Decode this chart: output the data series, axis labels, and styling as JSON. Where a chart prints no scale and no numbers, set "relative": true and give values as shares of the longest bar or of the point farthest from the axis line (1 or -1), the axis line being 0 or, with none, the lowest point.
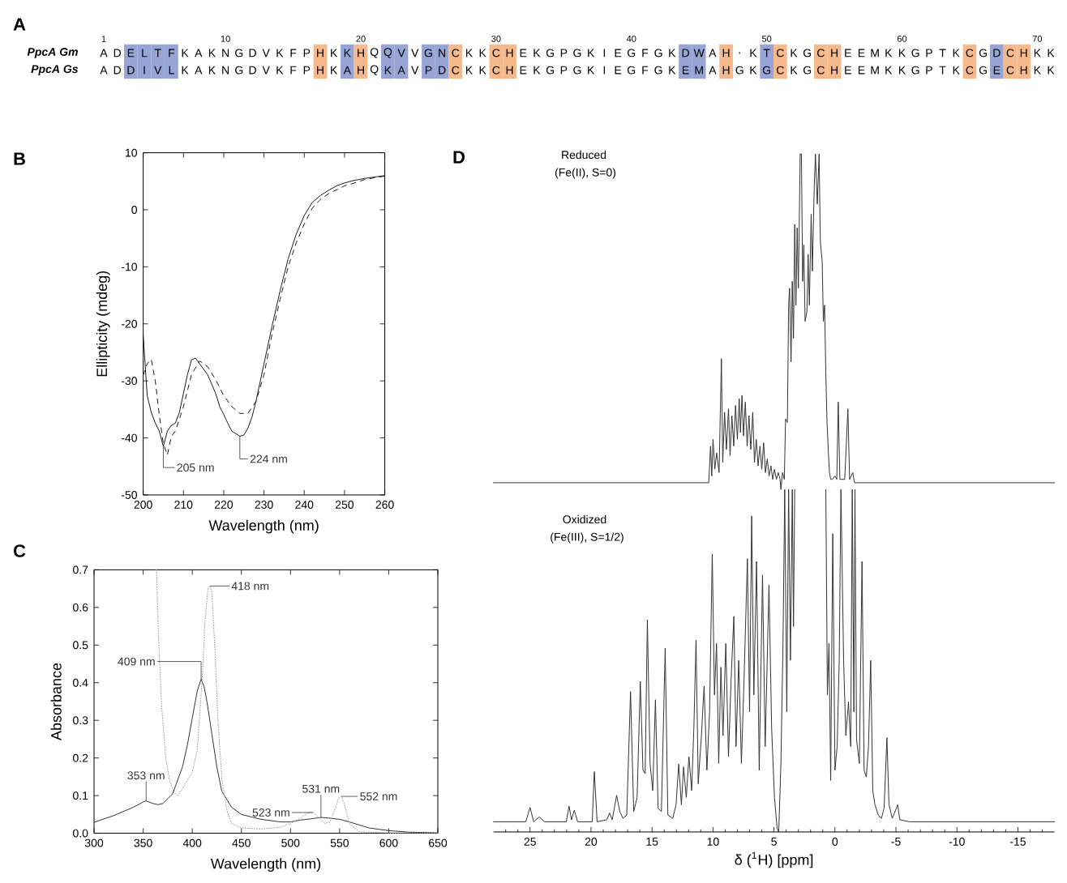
{
  "chart_data": [
    {
      "type": "other",
      "title": "A",
      "categories": [
        "1",
        null,
        null,
        null,
        null,
        null,
        null,
        null,
        null,
        "10",
        null,
        null,
        null,
        null,
        null,
        null,
        null,
        null,
        null,
        "20",
        null,
        null,
        null,
        null,
        null,
        null,
        null,
        null,
        null,
        "30",
        null,
        null,
        null,
        null,
        null,
        null,
        null,
        null,
        null,
        "40",
        null,
        null,
        null,
        null,
        null,
        null,
        null,
        null,
        null,
        "50",
        null,
        null,
        null,
        null,
        null,
        null,
        null,
        null,
        null,
        "60",
        null,
        null,
        null,
        null,
        null,
        null,
        null,
        null,
        null,
        "70",
        null
      ],
      "y_categories": [
        "PpcA Gm",
        "PpcA Gs"
      ],
      "cell_labels": [
        [
          "A",
          "D",
          "E",
          "L",
          "T",
          "F",
          "K",
          "A",
          "K",
          "N",
          "G",
          "D",
          "V",
          "K",
          "F",
          "P",
          "H",
          "K",
          "K",
          "H",
          "Q",
          "Q",
          "V",
          "V",
          "G",
          "N",
          "C",
          "K",
          "K",
          "C",
          "H",
          "E",
          "K",
          "G",
          "P",
          "G",
          "K",
          "I",
          "E",
          "G",
          "F",
          "G",
          "K",
          "D",
          "W",
          "A",
          "H",
          ".",
          "K",
          "T",
          "C",
          "K",
          "G",
          "C",
          "H",
          "E",
          "E",
          "M",
          "K",
          "K",
          "G",
          "P",
          "T",
          "K",
          "C",
          "G",
          "D",
          "C",
          "H",
          "K",
          "K"
        ],
        [
          "A",
          "D",
          "D",
          "I",
          "V",
          "L",
          "K",
          "A",
          "K",
          "N",
          "G",
          "D",
          "V",
          "K",
          "F",
          "P",
          "H",
          "K",
          "A",
          "H",
          "Q",
          "K",
          "A",
          "V",
          "P",
          "D",
          "C",
          "K",
          "K",
          "C",
          "H",
          "E",
          "K",
          "G",
          "P",
          "G",
          "K",
          "I",
          "E",
          "G",
          "F",
          "G",
          "K",
          "E",
          "M",
          "A",
          "H",
          "G",
          "K",
          "G",
          "C",
          "K",
          "G",
          "C",
          "H",
          "E",
          "E",
          "M",
          "K",
          "K",
          "G",
          "P",
          "T",
          "K",
          "C",
          "G",
          "E",
          "C",
          "H",
          "K",
          "K"
        ]
      ],
      "colors": [
        [
          null,
          null,
          "#96a5d6",
          "#96a5d6",
          "#96a5d6",
          "#96a5d6",
          null,
          null,
          null,
          null,
          null,
          null,
          null,
          null,
          null,
          null,
          "#f5b98b",
          null,
          "#96a5d6",
          "#f5b98b",
          null,
          "#96a5d6",
          "#96a5d6",
          null,
          "#96a5d6",
          "#96a5d6",
          "#f5b98b",
          null,
          null,
          "#f5b98b",
          "#f5b98b",
          null,
          null,
          null,
          null,
          null,
          null,
          null,
          null,
          null,
          null,
          null,
          null,
          "#96a5d6",
          "#96a5d6",
          null,
          "#f5b98b",
          null,
          null,
          "#96a5d6",
          "#f5b98b",
          null,
          null,
          "#f5b98b",
          "#f5b98b",
          null,
          null,
          null,
          null,
          null,
          null,
          null,
          null,
          null,
          "#f5b98b",
          null,
          "#96a5d6",
          "#f5b98b",
          "#f5b98b",
          null,
          null
        ],
        [
          null,
          null,
          "#96a5d6",
          "#96a5d6",
          "#96a5d6",
          "#96a5d6",
          null,
          null,
          null,
          null,
          null,
          null,
          null,
          null,
          null,
          null,
          "#f5b98b",
          null,
          "#96a5d6",
          "#f5b98b",
          null,
          "#96a5d6",
          "#96a5d6",
          null,
          "#96a5d6",
          "#96a5d6",
          "#f5b98b",
          null,
          null,
          "#f5b98b",
          "#f5b98b",
          null,
          null,
          null,
          null,
          null,
          null,
          null,
          null,
          null,
          null,
          null,
          null,
          "#96a5d6",
          "#96a5d6",
          null,
          "#f5b98b",
          null,
          null,
          "#96a5d6",
          "#f5b98b",
          null,
          null,
          "#f5b98b",
          "#f5b98b",
          null,
          null,
          null,
          null,
          null,
          null,
          null,
          null,
          null,
          "#f5b98b",
          null,
          "#96a5d6",
          "#f5b98b",
          "#f5b98b",
          null,
          null
        ]
      ]
    },
    {
      "type": "line",
      "title": "B",
      "xlabel": "Wavelength (nm)",
      "ylabel": "Ellipticity (mdeg)",
      "xlim": [
        200,
        260
      ],
      "ylim": [
        -50,
        10
      ],
      "xticks": [
        200,
        210,
        220,
        230,
        240,
        250,
        260
      ],
      "yticks": [
        -50,
        -40,
        -30,
        -20,
        -10,
        0,
        10
      ],
      "series": [
        {
          "color": "#1a1a1a",
          "line_style": "solid",
          "x": [
            200,
            201,
            202,
            203,
            204,
            205,
            206,
            207,
            208,
            209,
            210,
            211,
            212,
            213,
            214,
            216,
            218,
            219,
            220,
            221,
            222,
            224,
            225,
            226,
            227,
            228,
            230,
            232,
            234,
            236,
            238,
            240,
            242,
            244,
            246,
            248,
            250,
            252,
            255,
            258,
            260
          ],
          "values": [
            -22,
            -32.6,
            -35.5,
            -37.4,
            -38.8,
            -41.5,
            -38.8,
            -37.8,
            -37.4,
            -35.5,
            -32.2,
            -28.9,
            -26.3,
            -26,
            -27,
            -28.9,
            -32.2,
            -34.5,
            -35.9,
            -37.4,
            -38.8,
            -39.7,
            -39.5,
            -38.3,
            -36.4,
            -33.6,
            -27,
            -20.4,
            -14.2,
            -8.6,
            -4.3,
            -1.0,
            1.3,
            2.5,
            3.4,
            4.2,
            4.7,
            5.1,
            5.5,
            5.8,
            6.0
          ]
        },
        {
          "color": "#1a1a1a",
          "line_style": "dashed",
          "x": [
            200,
            201,
            202,
            203,
            204,
            205,
            206,
            207,
            208,
            210,
            212,
            214,
            216,
            218,
            220,
            222,
            224,
            226,
            228,
            230,
            232,
            234,
            236,
            238,
            240,
            242,
            244,
            246,
            248,
            250,
            252,
            255,
            258,
            260
          ],
          "values": [
            -29,
            -27,
            -26.2,
            -30,
            -36,
            -41,
            -43,
            -39.7,
            -38.8,
            -34.5,
            -28.9,
            -26.5,
            -27.5,
            -29.8,
            -32.6,
            -34.5,
            -35.7,
            -35.7,
            -33.6,
            -28.9,
            -21.8,
            -15.7,
            -10,
            -5.8,
            -2.5,
            0.3,
            1.8,
            2.8,
            3.5,
            4.2,
            4.6,
            5.3,
            5.7,
            5.9
          ]
        }
      ],
      "annotations": [
        {
          "text": "205 nm",
          "x": 205,
          "y": -41.5
        },
        {
          "text": "224 nm",
          "x": 224,
          "y": -39.7
        }
      ]
    },
    {
      "type": "line",
      "title": "C",
      "xlabel": "Wavelength (nm)",
      "ylabel": "Absorbance",
      "xlim": [
        300,
        650
      ],
      "ylim": [
        0,
        0.7
      ],
      "xticks": [
        300,
        350,
        400,
        450,
        500,
        550,
        600,
        650
      ],
      "yticks": [
        {
          "value": 0,
          "label": "0.0"
        },
        0.1,
        0.2,
        0.3,
        0.4,
        0.5,
        0.6,
        0.7
      ],
      "series": [
        {
          "color": "#333333",
          "line_style": "solid",
          "x": [
            300,
            320,
            340,
            350,
            353,
            360,
            365,
            370,
            380,
            390,
            395,
            400,
            405,
            409,
            412,
            415,
            420,
            425,
            430,
            440,
            450,
            470,
            490,
            500,
            510,
            520,
            531,
            540,
            550,
            560,
            580,
            600,
            620,
            650
          ],
          "values": [
            0.029,
            0.047,
            0.069,
            0.083,
            0.086,
            0.079,
            0.076,
            0.079,
            0.105,
            0.176,
            0.234,
            0.306,
            0.377,
            0.409,
            0.39,
            0.349,
            0.263,
            0.176,
            0.112,
            0.069,
            0.05,
            0.037,
            0.03,
            0.03,
            0.035,
            0.038,
            0.042,
            0.04,
            0.037,
            0.03,
            0.014,
            0.007,
            0.003,
            0.001
          ]
        },
        {
          "color": "#a0a0a0",
          "line_style": "dotted",
          "x": [
            363.5,
            366,
            369,
            373,
            377,
            381,
            385,
            390,
            395,
            400,
            405,
            410,
            413,
            416,
            418,
            420,
            423,
            426,
            430,
            435,
            440,
            450,
            470,
            490,
            500,
            510,
            518,
            523,
            528,
            535,
            540,
            545,
            549,
            552,
            555,
            560,
            570,
            600,
            650
          ],
          "values": [
            0.7,
            0.5,
            0.33,
            0.2,
            0.14,
            0.11,
            0.1,
            0.119,
            0.141,
            0.162,
            0.22,
            0.406,
            0.564,
            0.65,
            0.657,
            0.636,
            0.492,
            0.306,
            0.148,
            0.062,
            0.026,
            0.014,
            0.011,
            0.016,
            0.026,
            0.04,
            0.055,
            0.055,
            0.044,
            0.026,
            0.03,
            0.062,
            0.093,
            0.098,
            0.076,
            0.026,
            0.004,
            0.001,
            0.001
          ]
        }
      ],
      "annotations": [
        {
          "text": "418 nm",
          "x": 418,
          "y": 0.657
        },
        {
          "text": "409 nm",
          "x": 409,
          "y": 0.409
        },
        {
          "text": "353 nm",
          "x": 353,
          "y": 0.086
        },
        {
          "text": "523 nm",
          "x": 523,
          "y": 0.055
        },
        {
          "text": "531 nm",
          "x": 531,
          "y": 0.042
        },
        {
          "text": "552 nm",
          "x": 552,
          "y": 0.098
        }
      ]
    },
    {
      "type": "line",
      "title": "D",
      "relative": true,
      "xlim": [
        28,
        -18
      ],
      "xlabel": "δ ($^{1}$H) [ppm]",
      "xticks": [
        {
          "value": 27,
          "label": null
        },
        {
          "value": 26,
          "label": null
        },
        25,
        {
          "value": 24,
          "label": null
        },
        {
          "value": 23,
          "label": null
        },
        {
          "value": 22,
          "label": null
        },
        {
          "value": 21,
          "label": null
        },
        20,
        {
          "value": 19,
          "label": null
        },
        {
          "value": 18,
          "label": null
        },
        {
          "value": 17,
          "label": null
        },
        {
          "value": 16,
          "label": null
        },
        15,
        {
          "value": 14,
          "label": null
        },
        {
          "value": 13,
          "label": null
        },
        {
          "value": 12,
          "label": null
        },
        {
          "value": 11,
          "label": null
        },
        10,
        {
          "value": 9,
          "label": null
        },
        {
          "value": 8,
          "label": null
        },
        {
          "value": 7,
          "label": null
        },
        {
          "value": 6,
          "label": null
        },
        5,
        {
          "value": 4,
          "label": null
        },
        {
          "value": 3,
          "label": null
        },
        {
          "value": 2,
          "label": null
        },
        {
          "value": 1,
          "label": null
        },
        0,
        {
          "value": -1,
          "label": null
        },
        {
          "value": -2,
          "label": null
        },
        {
          "value": -3,
          "label": null
        },
        {
          "value": -4,
          "label": null
        },
        -5,
        {
          "value": -6,
          "label": null
        },
        {
          "value": -7,
          "label": null
        },
        {
          "value": -8,
          "label": null
        },
        {
          "value": -9,
          "label": null
        },
        -10,
        {
          "value": -11,
          "label": null
        },
        {
          "value": -12,
          "label": null
        },
        {
          "value": -13,
          "label": null
        },
        {
          "value": -14,
          "label": null
        },
        -15,
        {
          "value": -16,
          "label": null
        },
        {
          "value": -17,
          "label": null
        }
      ],
      "series": [
        {
          "color": "#333333",
          "x": [
            28,
            10.35,
            10.2,
            10.1,
            10.0,
            9.85,
            9.7,
            9.5,
            9.31,
            9.2,
            9.05,
            8.9,
            8.73,
            8.6,
            8.45,
            8.3,
            8.15,
            8.0,
            7.85,
            7.75,
            7.62,
            7.5,
            7.35,
            7.2,
            7.05,
            6.9,
            6.74,
            6.6,
            6.45,
            6.3,
            6.15,
            6.0,
            5.85,
            5.7,
            5.55,
            5.4,
            5.25,
            5.1,
            4.96,
            4.8,
            4.65,
            4.5,
            4.43,
            4.3,
            4.15,
            4.05,
            3.9,
            3.8,
            3.72,
            3.6,
            3.5,
            3.4,
            3.3,
            3.2,
            3.1,
            3.0,
            2.85,
            2.75,
            2.65,
            2.55,
            2.45,
            2.3,
            2.2,
            2.1,
            1.95,
            1.85,
            1.7,
            1.6,
            1.45,
            1.3,
            1.2,
            1.05,
            0.95,
            0.85,
            0.75,
            0.65,
            0.55,
            0.45,
            0.35,
            0.2,
            0.0,
            -0.15,
            -0.27,
            -0.4,
            -0.8,
            -1.06,
            -1.2,
            -1.46,
            -1.6,
            -18
          ],
          "values": [
            0.515,
            0.515,
            0.569,
            0.525,
            0.579,
            0.535,
            0.559,
            0.53,
            0.698,
            0.545,
            0.619,
            0.564,
            0.624,
            0.555,
            0.614,
            0.569,
            0.629,
            0.579,
            0.639,
            0.589,
            0.644,
            0.584,
            0.634,
            0.569,
            0.614,
            0.564,
            0.619,
            0.545,
            0.579,
            0.54,
            0.569,
            0.535,
            0.574,
            0.53,
            0.55,
            0.525,
            0.54,
            0.52,
            0.535,
            0.52,
            0.53,
            0.52,
            0.505,
            0.53,
            0.52,
            0.609,
            0.604,
            0.777,
            0.802,
            0.693,
            0.812,
            0.728,
            0.896,
            0.777,
            0.891,
            0.802,
            1,
            1,
            0.812,
            0.866,
            0.753,
            0.767,
            0.852,
            0.777,
            0.911,
            0.827,
            0.951,
            1,
            0.926,
            1,
            0.871,
            0.842,
            0.753,
            0.777,
            0.678,
            0.604,
            0.564,
            0.53,
            0.52,
            0.52,
            0.525,
            0.52,
            0.634,
            0.52,
            0.52,
            0.624,
            0.52,
            0.53,
            0.515,
            0.515
          ]
        },
        {
          "color": "#333333",
          "x": [
            28,
            25.35,
            25.0,
            24.7,
            24.25,
            23.8,
            22.03,
            21.8,
            21.6,
            21.37,
            21.1,
            19.9,
            19.73,
            19.5,
            18.7,
            18.48,
            18.26,
            17.9,
            17.64,
            17.38,
            17.07,
            16.76,
            16.5,
            16.22,
            15.96,
            15.74,
            15.56,
            15.38,
            15.16,
            14.94,
            14.72,
            14.5,
            14.23,
            13.92,
            13.7,
            13.3,
            13.03,
            12.81,
            12.59,
            12.41,
            12.19,
            11.97,
            11.75,
            11.57,
            11.39,
            11.21,
            10.95,
            10.73,
            10.5,
            10.28,
            10.06,
            9.88,
            9.71,
            9.53,
            9.35,
            9.18,
            8.95,
            8.73,
            8.51,
            8.29,
            8.11,
            7.89,
            7.67,
            7.45,
            7.18,
            7.0,
            6.83,
            6.65,
            6.43,
            6.21,
            5.94,
            5.72,
            5.41,
            5.19,
            4.96,
            4.74,
            4.61,
            4.43,
            4.26,
            4.12,
            3.95,
            3.8,
            3.65,
            3.5,
            3.4,
            3.3,
            2.0,
            0.75,
            0.62,
            0.49,
            0.35,
            0.18,
            0.0,
            -0.18,
            -0.35,
            -0.49,
            -0.71,
            -0.89,
            -1.11,
            -1.29,
            -1.42,
            -1.55,
            -1.64,
            -1.77,
            -2.0,
            -2.22,
            -2.39,
            -2.57,
            -2.75,
            -2.93,
            -3.1,
            -3.28,
            -3.55,
            -3.81,
            -4.03,
            -4.26,
            -4.43,
            -4.7,
            -5.14,
            -5.32,
            -6.12,
            -18
          ],
          "values": [
            0.015,
            0.015,
            0.036,
            0.015,
            0.022,
            0.015,
            0.015,
            0.038,
            0.018,
            0.032,
            0.015,
            0.015,
            0.089,
            0.015,
            0.018,
            0.028,
            0.018,
            0.054,
            0.03,
            0.02,
            0.025,
            0.207,
            0.03,
            0.051,
            0.222,
            0.091,
            0.086,
            0.313,
            0.101,
            0.061,
            0.195,
            0.035,
            0.03,
            0.271,
            0.025,
            0.02,
            0.04,
            0.1,
            0.04,
            0.096,
            0.051,
            0.111,
            0.061,
            0.152,
            0.283,
            0.071,
            0.142,
            0.215,
            0.091,
            0.177,
            0.41,
            0.202,
            0.278,
            0.101,
            0.243,
            0.142,
            0.278,
            0.111,
            0.227,
            0.318,
            0.126,
            0.253,
            0.101,
            0.227,
            0.403,
            0.177,
            0.466,
            0.202,
            0.399,
            0.091,
            0.379,
            0.126,
            0.364,
            0.152,
            0.051,
            0.005,
            0,
            0.101,
            0.278,
            0.505,
            0.177,
            0.505,
            0.253,
            0.505,
            0.303,
            0.505,
            null,
            0.505,
            0.202,
            0.278,
            0.076,
            0.44,
            0.091,
            0.126,
            0.253,
            0.505,
            0.253,
            0.142,
            0.192,
            0.126,
            0.505,
            0.177,
            0.505,
            0.136,
            0.101,
            0.399,
            0.091,
            0.081,
            0.126,
            0.253,
            0.061,
            0.04,
            0.025,
            0.02,
            0.035,
            0.139,
            0.04,
            0.02,
            0.04,
            0.018,
            0.015,
            0.015
          ]
        }
      ],
      "annotations": [
        "Reduced",
        "(Fe(II), S=0)",
        "Oxidized",
        "(Fe(III), S=1/2)"
      ]
    }
  ]
}
